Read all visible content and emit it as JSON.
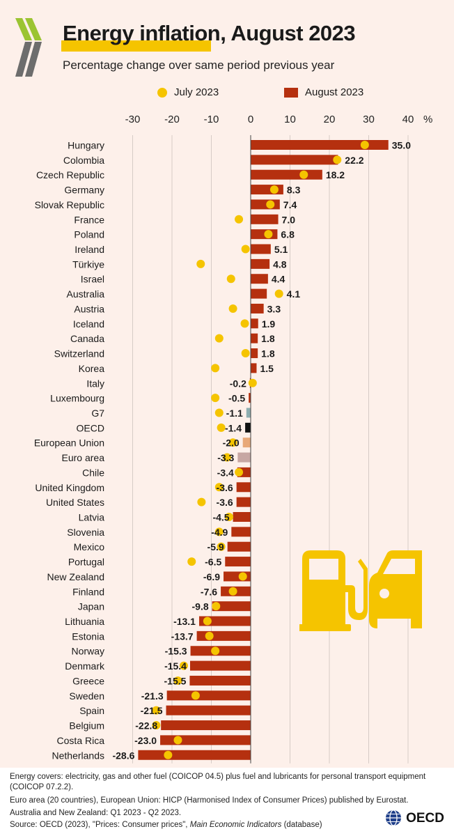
{
  "header": {
    "title": "Energy inflation, August 2023",
    "subtitle": "Percentage change over same period previous year"
  },
  "colors": {
    "background": "#fdf0ea",
    "bar": "#b5300f",
    "dot": "#f5c400",
    "g7": "#8eaeb0",
    "oecd": "#111111",
    "european_union": "#e8a878",
    "euro_area": "#c7a7a3"
  },
  "chart_data": {
    "type": "bar",
    "orientation": "horizontal",
    "title": "Energy inflation, August 2023",
    "subtitle": "Percentage change over same period previous year",
    "unit": "%",
    "xlim": [
      -30,
      40
    ],
    "xticks": [
      -30,
      -20,
      -10,
      0,
      10,
      20,
      30,
      40
    ],
    "grid": true,
    "legend_position": "top",
    "categories": [
      "Hungary",
      "Colombia",
      "Czech Republic",
      "Germany",
      "Slovak Republic",
      "France",
      "Poland",
      "Ireland",
      "Türkiye",
      "Israel",
      "Australia",
      "Austria",
      "Iceland",
      "Canada",
      "Switzerland",
      "Korea",
      "Italy",
      "Luxembourg",
      "G7",
      "OECD",
      "European Union",
      "Euro area",
      "Chile",
      "United Kingdom",
      "United States",
      "Latvia",
      "Slovenia",
      "Mexico",
      "Portugal",
      "New Zealand",
      "Finland",
      "Japan",
      "Lithuania",
      "Estonia",
      "Norway",
      "Denmark",
      "Greece",
      "Sweden",
      "Spain",
      "Belgium",
      "Costa Rica",
      "Netherlands"
    ],
    "series": [
      {
        "name": "August 2023",
        "type": "bar",
        "values": [
          35.0,
          22.2,
          18.2,
          8.3,
          7.4,
          7.0,
          6.8,
          5.1,
          4.8,
          4.4,
          4.1,
          3.3,
          1.9,
          1.8,
          1.8,
          1.5,
          -0.2,
          -0.5,
          -1.1,
          -1.4,
          -2.0,
          -3.3,
          -3.4,
          -3.6,
          -3.6,
          -4.5,
          -4.9,
          -5.9,
          -6.5,
          -6.9,
          -7.6,
          -9.8,
          -13.1,
          -13.7,
          -15.3,
          -15.4,
          -15.5,
          -21.3,
          -21.5,
          -22.8,
          -23.0,
          -28.6
        ],
        "labels": [
          "35.0",
          "22.2",
          "18.2",
          "8.3",
          "7.4",
          "7.0",
          "6.8",
          "5.1",
          "4.8",
          "4.4",
          "4.1",
          "3.3",
          "1.9",
          "1.8",
          "1.8",
          "1.5",
          "-0.2",
          "-0.5",
          "-1.1",
          "-1.4",
          "-2.0",
          "-3.3",
          "-3.4",
          "-3.6",
          "-3.6",
          "-4.5",
          "-4.9",
          "-5.9",
          "-6.5",
          "-6.9",
          "-7.6",
          "-9.8",
          "-13.1",
          "-13.7",
          "-15.3",
          "-15.4",
          "-15.5",
          "-21.3",
          "-21.5",
          "-22.8",
          "-23.0",
          "-28.6"
        ]
      },
      {
        "name": "July 2023",
        "type": "scatter",
        "values": [
          29,
          22,
          13.5,
          6,
          5,
          -3,
          4.5,
          -1.3,
          -12.7,
          -5,
          7.2,
          -4.5,
          -1.5,
          -8,
          -1.3,
          -9,
          0.5,
          -9,
          -8,
          -7.5,
          -4.5,
          -6,
          -3,
          -8,
          -12.5,
          -5.5,
          -8,
          -7.5,
          -15,
          -2,
          -4.5,
          -8.8,
          -11,
          -10.5,
          -9,
          -17,
          -18.5,
          -14,
          -24,
          -24,
          -18.5,
          -21
        ]
      }
    ]
  },
  "icons": {
    "logo": "oecd-chevrons-icon",
    "illustration": "fuel-pump-car-icon",
    "brand": "oecd-globe-icon"
  },
  "footer": {
    "note1": "Energy covers: electricity, gas and other fuel (COICOP 04.5) plus fuel and lubricants for personal transport equipment (COICOP 07.2.2).",
    "note2": "Euro area (20 countries), European Union: HICP (Harmonised Index of Consumer Prices) published by Eurostat.",
    "note3": "Australia and New Zealand:  Q1 2023 - Q2 2023.",
    "source_prefix": "Source: OECD (2023), \"Prices: Consumer prices\", ",
    "source_italic": "Main Economic Indicators",
    "source_suffix": " (database)",
    "brand": "OECD"
  }
}
